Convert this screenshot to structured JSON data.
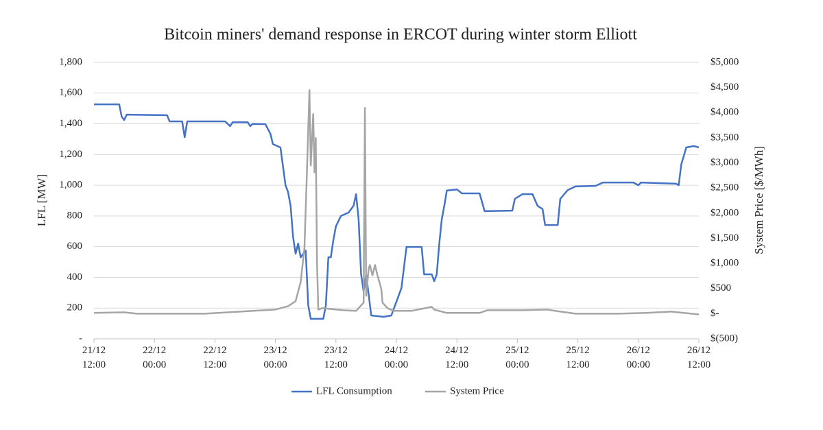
{
  "chart_data": {
    "type": "line",
    "title": "Bitcoin miners' demand response in ERCOT during winter storm Elliott",
    "ylabel": "LFL [MW]",
    "y2label": "System Price [$/MWh]",
    "xlim": [
      "21/12 12:00",
      "26/12 12:00"
    ],
    "xticks": [
      {
        "value": "21/12 12:00",
        "label": "21/12\n12:00"
      },
      {
        "value": "22/12 00:00",
        "label": "22/12\n00:00"
      },
      {
        "value": "22/12 12:00",
        "label": "22/12\n12:00"
      },
      {
        "value": "23/12 00:00",
        "label": "23/12\n00:00"
      },
      {
        "value": "23/12 12:00",
        "label": "23/12\n12:00"
      },
      {
        "value": "24/12 00:00",
        "label": "24/12\n00:00"
      },
      {
        "value": "24/12 12:00",
        "label": "24/12\n12:00"
      },
      {
        "value": "25/12 00:00",
        "label": "25/12\n00:00"
      },
      {
        "value": "25/12 12:00",
        "label": "25/12\n12:00"
      },
      {
        "value": "26/12 00:00",
        "label": "26/12\n00:00"
      },
      {
        "value": "26/12 12:00",
        "label": "26/12\n12:00"
      }
    ],
    "ylim": [
      0,
      1800
    ],
    "yticks": [
      {
        "value": 0,
        "label": "-"
      },
      200,
      400,
      600,
      800,
      {
        "value": 1000,
        "label": "1,000"
      },
      {
        "value": 1200,
        "label": "1,200"
      },
      {
        "value": 1400,
        "label": "1,400"
      },
      {
        "value": 1600,
        "label": "1,600"
      },
      {
        "value": 1800,
        "label": "1,800"
      }
    ],
    "y2lim": [
      -500,
      5000
    ],
    "y2ticks": [
      {
        "value": -500,
        "label": "$(500)"
      },
      {
        "value": 0,
        "label": "$-"
      },
      {
        "value": 500,
        "label": "$500"
      },
      {
        "value": 1000,
        "label": "$1,000"
      },
      {
        "value": 1500,
        "label": "$1,500"
      },
      {
        "value": 2000,
        "label": "$2,000"
      },
      {
        "value": 2500,
        "label": "$2,500"
      },
      {
        "value": 3000,
        "label": "$3,000"
      },
      {
        "value": 3500,
        "label": "$3,500"
      },
      {
        "value": 4000,
        "label": "$4,000"
      },
      {
        "value": 4500,
        "label": "$4,500"
      },
      {
        "value": 5000,
        "label": "$5,000"
      }
    ],
    "grid": true,
    "legend": "bottom",
    "series": [
      {
        "name": "LFL Consumption",
        "color": "#4472c4",
        "x": [
          "21/12 12:00",
          "21/12 17:00",
          "21/12 17:30",
          "21/12 18:00",
          "21/12 18:30",
          "22/12 02:30",
          "22/12 03:00",
          "22/12 05:30",
          "22/12 06:00",
          "22/12 06:30",
          "22/12 14:00",
          "22/12 15:00",
          "22/12 15:30",
          "22/12 18:30",
          "22/12 19:00",
          "22/12 19:30",
          "22/12 22:00",
          "22/12 23:00",
          "22/12 23:30",
          "23/12 01:00",
          "23/12 02:00",
          "23/12 02:30",
          "23/12 03:00",
          "23/12 03:30",
          "23/12 04:00",
          "23/12 04:30",
          "23/12 05:00",
          "23/12 06:00",
          "23/12 06:30",
          "23/12 07:00",
          "23/12 09:30",
          "23/12 10:00",
          "23/12 10:30",
          "23/12 11:00",
          "23/12 11:30",
          "23/12 12:00",
          "23/12 13:00",
          "23/12 14:30",
          "23/12 15:30",
          "23/12 16:00",
          "23/12 16:30",
          "23/12 17:00",
          "23/12 17:30",
          "23/12 18:00",
          "23/12 19:00",
          "23/12 21:30",
          "23/12 23:00",
          "23/12 23:30",
          "24/12 00:00",
          "24/12 01:00",
          "24/12 02:00",
          "24/12 05:00",
          "24/12 05:30",
          "24/12 07:00",
          "24/12 07:30",
          "24/12 08:00",
          "24/12 08:30",
          "24/12 09:00",
          "24/12 09:30",
          "24/12 10:00",
          "24/12 12:00",
          "24/12 13:00",
          "24/12 16:30",
          "24/12 17:30",
          "24/12 23:00",
          "24/12 23:30",
          "25/12 01:00",
          "25/12 03:00",
          "25/12 04:00",
          "25/12 05:00",
          "25/12 05:30",
          "25/12 08:00",
          "25/12 08:30",
          "25/12 10:00",
          "25/12 11:30",
          "25/12 15:30",
          "25/12 17:00",
          "25/12 23:00",
          "26/12 00:00",
          "26/12 00:30",
          "26/12 07:30",
          "26/12 08:00",
          "26/12 08:30",
          "26/12 09:30",
          "26/12 11:00",
          "26/12 12:00"
        ],
        "values": [
          1527,
          1527,
          1447,
          1425,
          1460,
          1456,
          1416,
          1416,
          1313,
          1416,
          1416,
          1385,
          1410,
          1410,
          1385,
          1400,
          1398,
          1335,
          1268,
          1246,
          1000,
          956,
          866,
          665,
          554,
          620,
          531,
          575,
          219,
          130,
          130,
          219,
          531,
          531,
          643,
          733,
          800,
          822,
          866,
          942,
          777,
          420,
          308,
          420,
          152,
          143,
          152,
          197,
          241,
          330,
          598,
          598,
          420,
          420,
          375,
          420,
          620,
          777,
          866,
          965,
          973,
          947,
          947,
          831,
          835,
          911,
          942,
          942,
          866,
          845,
          741,
          741,
          911,
          969,
          992,
          996,
          1018,
          1018,
          1000,
          1018,
          1010,
          1000,
          1134,
          1246,
          1255,
          1246
        ]
      },
      {
        "name": "System Price",
        "color": "#a5a5a5",
        "axis": "y2",
        "x": [
          "21/12 12:00",
          "21/12 18:00",
          "21/12 20:30",
          "22/12 03:30",
          "22/12 10:00",
          "22/12 17:00",
          "23/12 00:00",
          "23/12 02:30",
          "23/12 04:00",
          "23/12 05:00",
          "23/12 05:45",
          "23/12 06:15",
          "23/12 06:45",
          "23/12 07:00",
          "23/12 07:30",
          "23/12 07:45",
          "23/12 08:00",
          "23/12 08:15",
          "23/12 08:30",
          "23/12 09:15",
          "23/12 13:30",
          "23/12 16:00",
          "23/12 17:30",
          "23/12 17:45",
          "23/12 18:00",
          "23/12 18:30",
          "23/12 18:45",
          "23/12 19:15",
          "23/12 19:45",
          "23/12 20:15",
          "23/12 21:00",
          "23/12 21:15",
          "23/12 22:15",
          "23/12 23:30",
          "24/12 03:00",
          "24/12 07:00",
          "24/12 07:30",
          "24/12 10:00",
          "24/12 16:30",
          "24/12 18:00",
          "25/12 01:00",
          "25/12 06:00",
          "25/12 07:30",
          "25/12 11:30",
          "25/12 20:00",
          "26/12 01:30",
          "26/12 06:30",
          "26/12 12:00"
        ],
        "values": [
          14,
          27,
          0,
          0,
          0,
          41,
          82,
          150,
          246,
          628,
          1310,
          2811,
          4449,
          2948,
          3972,
          2811,
          3494,
          1037,
          82,
          109,
          68,
          55,
          218,
          4094,
          355,
          901,
          969,
          764,
          969,
          764,
          491,
          218,
          109,
          55,
          55,
          136,
          82,
          14,
          14,
          68,
          68,
          82,
          55,
          0,
          0,
          14,
          41,
          -14
        ]
      }
    ]
  }
}
